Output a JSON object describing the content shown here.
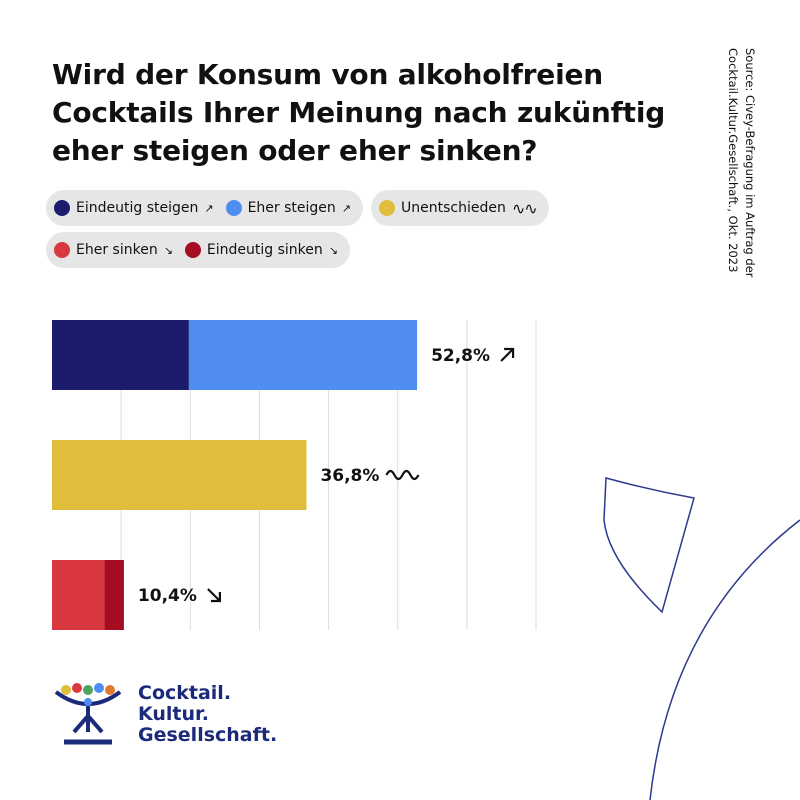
{
  "title": "Wird der Konsum von alkoholfreien Cocktails Ihrer Meinung nach zukünftig eher steigen oder eher sinken?",
  "source": {
    "line1": "Source: Civey-Befragung im Auftrag der",
    "line2": "Cocktail.Kultur.Gesellschaft., Okt. 2023"
  },
  "legend": {
    "items": [
      {
        "label": "Eindeutig steigen",
        "color": "#1c1c6e",
        "icon": "arrow-up-right-icon"
      },
      {
        "label": "Eher steigen",
        "color": "#4f8ef0",
        "icon": "arrow-up-right-icon"
      },
      {
        "label": "Unentschieden",
        "color": "#e0bd3a",
        "icon": "wave-icon"
      },
      {
        "label": "Eher sinken",
        "color": "#d9393e",
        "icon": "arrow-down-right-icon"
      },
      {
        "label": "Eindeutig sinken",
        "color": "#a50d22",
        "icon": "arrow-down-right-icon"
      }
    ]
  },
  "chart_data": {
    "type": "bar",
    "orientation": "horizontal",
    "stacked": true,
    "grid": true,
    "bars": [
      {
        "total": 52.8,
        "label": "52,8%",
        "icon": "arrow-up-right-icon",
        "segments": [
          {
            "series": "Eindeutig steigen",
            "value": 19.8,
            "color": "#1c1c6e"
          },
          {
            "series": "Eher steigen",
            "value": 33.0,
            "color": "#4f8ef0"
          }
        ]
      },
      {
        "total": 36.8,
        "label": "36,8%",
        "icon": "wave-icon",
        "segments": [
          {
            "series": "Unentschieden",
            "value": 36.8,
            "color": "#e0bd3a"
          }
        ]
      },
      {
        "total": 10.4,
        "label": "10,4%",
        "icon": "arrow-down-right-icon",
        "segments": [
          {
            "series": "Eher sinken",
            "value": 7.6,
            "color": "#d9393e"
          },
          {
            "series": "Eindeutig sinken",
            "value": 2.8,
            "color": "#a50d22"
          }
        ]
      }
    ],
    "xlim": [
      0,
      70
    ]
  },
  "logo": {
    "line1": "Cocktail.",
    "line2": "Kultur.",
    "line3": "Gesellschaft.",
    "text_color": "#1b2a7a"
  }
}
